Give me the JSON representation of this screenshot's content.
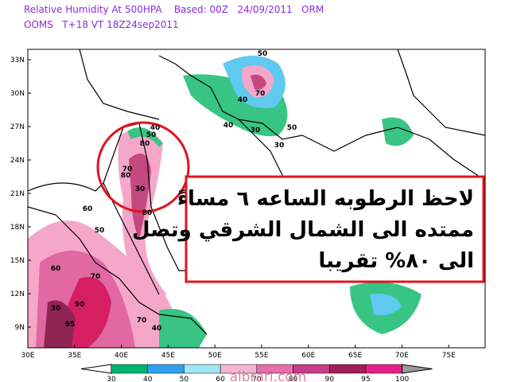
{
  "header": {
    "title": "Relative Humidity At 500HPA    Based: 00Z   24/09/2011   ORM",
    "subtitle": "OOMS   T+18 VT 18Z24sep2011"
  },
  "latitude_labels": [
    "33N",
    "30N",
    "27N",
    "24N",
    "21N",
    "18N",
    "15N",
    "12N",
    "9N"
  ],
  "longitude_labels": [
    "30E",
    "35E",
    "40E",
    "45E",
    "50E",
    "55E",
    "60E",
    "65E",
    "70E",
    "75E"
  ],
  "contour_labels": [
    40,
    50,
    80,
    70,
    80,
    30,
    80,
    60,
    50,
    70,
    90,
    95,
    30,
    60,
    70,
    40,
    50,
    40,
    30,
    30,
    40,
    70,
    50
  ],
  "annotation": {
    "lines": [
      "لاحظ الرطوبه الساعه ٦ مساءً",
      "ممتده الى الشمال الشرقي وتصل",
      "الى ٨٠% تقريبا"
    ]
  },
  "colorbar": {
    "levels": [
      30,
      40,
      50,
      60,
      70,
      80,
      90,
      95,
      100
    ],
    "colors": [
      "#00b46e",
      "#2ea0f0",
      "#a0e6f5",
      "#f5b4d2",
      "#e66eaa",
      "#c83c8c",
      "#a01e5a",
      "#e61e8c",
      "#9a9a9a"
    ]
  },
  "watermark": "albrari.com"
}
